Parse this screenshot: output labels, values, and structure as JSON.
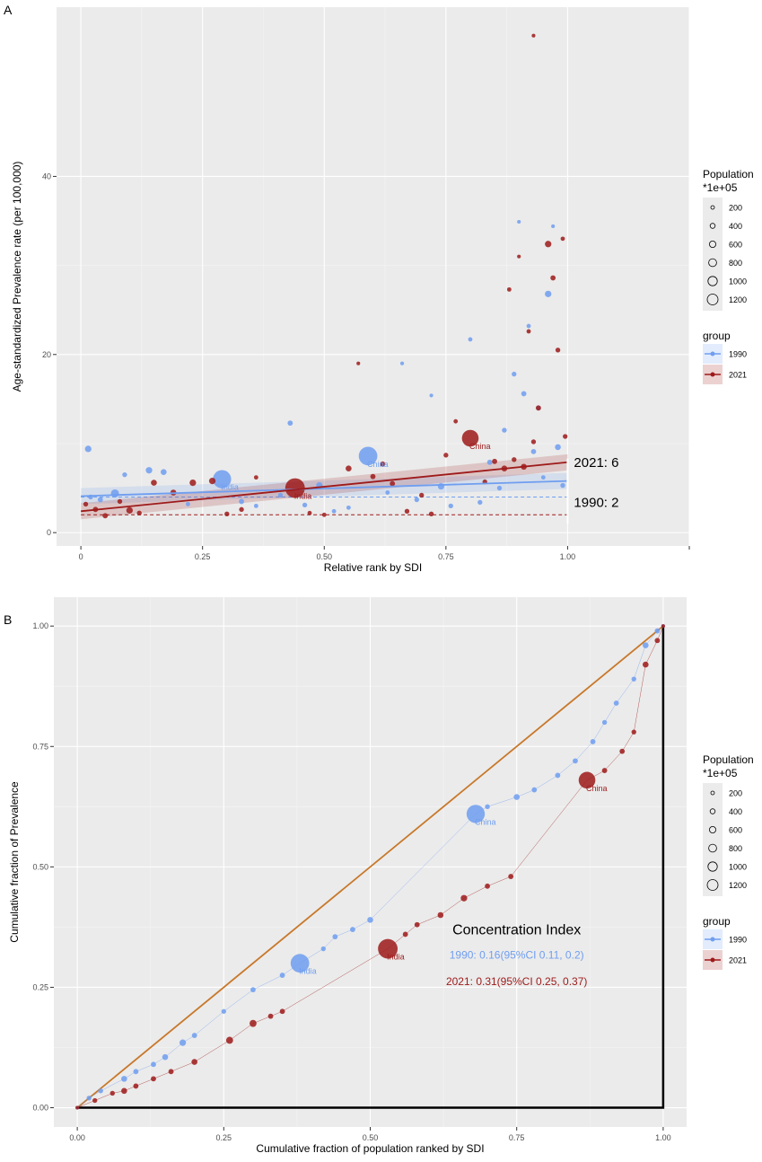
{
  "chart_data": [
    {
      "panel": "A",
      "type": "scatter",
      "xlabel": "Relative rank by SDI",
      "ylabel": "Age-standardized Prevalence rate (per 100,000)",
      "xlim": [
        -0.05,
        1.25
      ],
      "ylim": [
        -1.5,
        59
      ],
      "xticks": [
        0,
        0.25,
        0.5,
        0.75,
        1.0
      ],
      "xtick_labels": [
        "0",
        "0.25",
        "0.50",
        "0.75",
        "1.00"
      ],
      "yticks": [
        0,
        20,
        40
      ],
      "ytick_labels": [
        "0",
        "20",
        "40"
      ],
      "series": [
        {
          "name": "1990",
          "color": "#6f9ef0",
          "fit": [
            [
              0,
              4.1
            ],
            [
              1,
              5.8
            ]
          ],
          "hline": 4.0,
          "end_label": "1990: 2",
          "points": [
            [
              0.015,
              9.4,
              80
            ],
            [
              0.02,
              4.0,
              30
            ],
            [
              0.04,
              3.7,
              40
            ],
            [
              0.07,
              4.4,
              150
            ],
            [
              0.09,
              6.5,
              30
            ],
            [
              0.14,
              7.0,
              80
            ],
            [
              0.17,
              6.8,
              60
            ],
            [
              0.22,
              3.2,
              20
            ],
            [
              0.29,
              6.0,
              1100
            ],
            [
              0.33,
              3.5,
              40
            ],
            [
              0.36,
              3.0,
              20
            ],
            [
              0.41,
              4.2,
              30
            ],
            [
              0.43,
              12.3,
              40
            ],
            [
              0.46,
              3.1,
              30
            ],
            [
              0.49,
              5.3,
              80
            ],
            [
              0.52,
              2.4,
              20
            ],
            [
              0.55,
              2.8,
              20
            ],
            [
              0.59,
              8.6,
              1150
            ],
            [
              0.63,
              4.5,
              20
            ],
            [
              0.66,
              19.0,
              10
            ],
            [
              0.69,
              3.7,
              30
            ],
            [
              0.72,
              15.4,
              10
            ],
            [
              0.74,
              5.2,
              80
            ],
            [
              0.76,
              3.0,
              30
            ],
            [
              0.8,
              21.7,
              20
            ],
            [
              0.82,
              3.4,
              30
            ],
            [
              0.84,
              7.9,
              40
            ],
            [
              0.86,
              5.0,
              30
            ],
            [
              0.87,
              11.5,
              30
            ],
            [
              0.89,
              17.8,
              30
            ],
            [
              0.9,
              34.9,
              10
            ],
            [
              0.91,
              15.6,
              40
            ],
            [
              0.92,
              23.2,
              20
            ],
            [
              0.93,
              9.1,
              40
            ],
            [
              0.94,
              14.0,
              30
            ],
            [
              0.95,
              6.2,
              20
            ],
            [
              0.96,
              26.8,
              80
            ],
            [
              0.97,
              34.4,
              10
            ],
            [
              0.98,
              9.6,
              60
            ],
            [
              0.99,
              5.3,
              30
            ]
          ]
        },
        {
          "name": "2021",
          "color": "#9e1a1a",
          "fit": [
            [
              0,
              2.4
            ],
            [
              1,
              7.9
            ]
          ],
          "hline": 2.0,
          "end_label": "2021: 6",
          "points": [
            [
              0.01,
              3.2,
              30
            ],
            [
              0.03,
              2.6,
              40
            ],
            [
              0.05,
              1.9,
              40
            ],
            [
              0.08,
              3.5,
              30
            ],
            [
              0.1,
              2.5,
              80
            ],
            [
              0.12,
              2.2,
              30
            ],
            [
              0.15,
              5.6,
              60
            ],
            [
              0.19,
              4.5,
              60
            ],
            [
              0.23,
              5.6,
              80
            ],
            [
              0.27,
              5.8,
              80
            ],
            [
              0.3,
              2.1,
              30
            ],
            [
              0.33,
              2.6,
              30
            ],
            [
              0.36,
              6.2,
              20
            ],
            [
              0.44,
              5.0,
              1300
            ],
            [
              0.47,
              2.2,
              20
            ],
            [
              0.5,
              2.0,
              20
            ],
            [
              0.55,
              7.2,
              60
            ],
            [
              0.57,
              19.0,
              10
            ],
            [
              0.6,
              6.3,
              40
            ],
            [
              0.62,
              7.7,
              40
            ],
            [
              0.64,
              5.5,
              40
            ],
            [
              0.67,
              2.4,
              30
            ],
            [
              0.7,
              4.2,
              30
            ],
            [
              0.72,
              2.1,
              30
            ],
            [
              0.75,
              8.7,
              30
            ],
            [
              0.77,
              12.5,
              20
            ],
            [
              0.8,
              10.6,
              900
            ],
            [
              0.83,
              5.7,
              30
            ],
            [
              0.85,
              8.0,
              40
            ],
            [
              0.87,
              7.2,
              60
            ],
            [
              0.88,
              27.3,
              20
            ],
            [
              0.89,
              8.2,
              30
            ],
            [
              0.9,
              31.0,
              10
            ],
            [
              0.91,
              7.4,
              60
            ],
            [
              0.92,
              22.6,
              20
            ],
            [
              0.93,
              10.2,
              30
            ],
            [
              0.94,
              14.0,
              40
            ],
            [
              0.96,
              32.4,
              80
            ],
            [
              0.97,
              28.6,
              40
            ],
            [
              0.98,
              20.5,
              30
            ],
            [
              0.99,
              33.0,
              20
            ],
            [
              0.995,
              10.8,
              30
            ],
            [
              0.93,
              55.8,
              10
            ]
          ]
        }
      ],
      "annotations": [
        {
          "text": "China",
          "series": "1990",
          "x": 0.59,
          "y": 8.6
        },
        {
          "text": "India",
          "series": "1990",
          "x": 0.29,
          "y": 6.0
        },
        {
          "text": "China",
          "series": "2021",
          "x": 0.8,
          "y": 10.6
        },
        {
          "text": "India",
          "series": "2021",
          "x": 0.44,
          "y": 5.0
        }
      ]
    },
    {
      "panel": "B",
      "type": "line",
      "xlabel": "Cumulative fraction of population ranked by SDI",
      "ylabel": "Cumulative fraction of Prevalence",
      "xlim": [
        -0.04,
        1.04
      ],
      "ylim": [
        -0.04,
        1.06
      ],
      "xticks": [
        0,
        0.25,
        0.5,
        0.75,
        1.0
      ],
      "xtick_labels": [
        "0.00",
        "0.25",
        "0.50",
        "0.75",
        "1.00"
      ],
      "yticks": [
        0,
        0.25,
        0.5,
        0.75,
        1.0
      ],
      "ytick_labels": [
        "0.00",
        "0.25",
        "0.50",
        "0.75",
        "1.00"
      ],
      "title": "Concentration Index",
      "series": [
        {
          "name": "1990",
          "color": "#6f9ef0",
          "ci_text": "1990: 0.16(95%CI 0.11, 0.2)",
          "points": [
            [
              0,
              0,
              10
            ],
            [
              0.02,
              0.02,
              30
            ],
            [
              0.04,
              0.035,
              30
            ],
            [
              0.08,
              0.06,
              60
            ],
            [
              0.1,
              0.075,
              40
            ],
            [
              0.13,
              0.09,
              40
            ],
            [
              0.15,
              0.105,
              60
            ],
            [
              0.18,
              0.135,
              80
            ],
            [
              0.2,
              0.15,
              40
            ],
            [
              0.25,
              0.2,
              30
            ],
            [
              0.3,
              0.245,
              40
            ],
            [
              0.35,
              0.275,
              40
            ],
            [
              0.38,
              0.3,
              1150
            ],
            [
              0.42,
              0.33,
              30
            ],
            [
              0.44,
              0.355,
              40
            ],
            [
              0.47,
              0.37,
              40
            ],
            [
              0.5,
              0.39,
              60
            ],
            [
              0.68,
              0.61,
              1100
            ],
            [
              0.7,
              0.625,
              30
            ],
            [
              0.75,
              0.645,
              60
            ],
            [
              0.78,
              0.66,
              40
            ],
            [
              0.82,
              0.69,
              40
            ],
            [
              0.85,
              0.72,
              40
            ],
            [
              0.88,
              0.76,
              40
            ],
            [
              0.9,
              0.8,
              30
            ],
            [
              0.92,
              0.84,
              40
            ],
            [
              0.95,
              0.89,
              30
            ],
            [
              0.97,
              0.96,
              60
            ],
            [
              0.99,
              0.99,
              40
            ],
            [
              1,
              1,
              10
            ]
          ]
        },
        {
          "name": "2021",
          "color": "#9e1a1a",
          "ci_text": "2021: 0.31(95%CI 0.25, 0.37)",
          "points": [
            [
              0,
              0,
              10
            ],
            [
              0.03,
              0.015,
              30
            ],
            [
              0.06,
              0.03,
              30
            ],
            [
              0.08,
              0.035,
              60
            ],
            [
              0.1,
              0.045,
              40
            ],
            [
              0.13,
              0.06,
              40
            ],
            [
              0.16,
              0.075,
              40
            ],
            [
              0.2,
              0.095,
              60
            ],
            [
              0.26,
              0.14,
              100
            ],
            [
              0.3,
              0.175,
              100
            ],
            [
              0.33,
              0.19,
              40
            ],
            [
              0.35,
              0.2,
              40
            ],
            [
              0.53,
              0.33,
              1300
            ],
            [
              0.56,
              0.36,
              40
            ],
            [
              0.58,
              0.38,
              40
            ],
            [
              0.62,
              0.4,
              60
            ],
            [
              0.66,
              0.435,
              80
            ],
            [
              0.7,
              0.46,
              40
            ],
            [
              0.74,
              0.48,
              40
            ],
            [
              0.87,
              0.68,
              900
            ],
            [
              0.9,
              0.7,
              40
            ],
            [
              0.93,
              0.74,
              40
            ],
            [
              0.95,
              0.78,
              30
            ],
            [
              0.97,
              0.92,
              60
            ],
            [
              0.99,
              0.97,
              40
            ],
            [
              1,
              1,
              10
            ]
          ]
        }
      ],
      "annotations": [
        {
          "text": "China",
          "series": "1990",
          "x": 0.68,
          "y": 0.61
        },
        {
          "text": "India",
          "series": "1990",
          "x": 0.38,
          "y": 0.3
        },
        {
          "text": "China",
          "series": "2021",
          "x": 0.87,
          "y": 0.68
        },
        {
          "text": "India",
          "series": "2021",
          "x": 0.53,
          "y": 0.33
        }
      ],
      "equality_line_color": "#c8782a"
    }
  ],
  "panel_labels": [
    "A",
    "B"
  ],
  "legend": {
    "size_title": "Population",
    "size_subtitle": "*1e+05",
    "size_values": [
      "200",
      "400",
      "600",
      "800",
      "1000",
      "1200"
    ],
    "group_title": "group",
    "groups": [
      "1990",
      "2021"
    ]
  }
}
